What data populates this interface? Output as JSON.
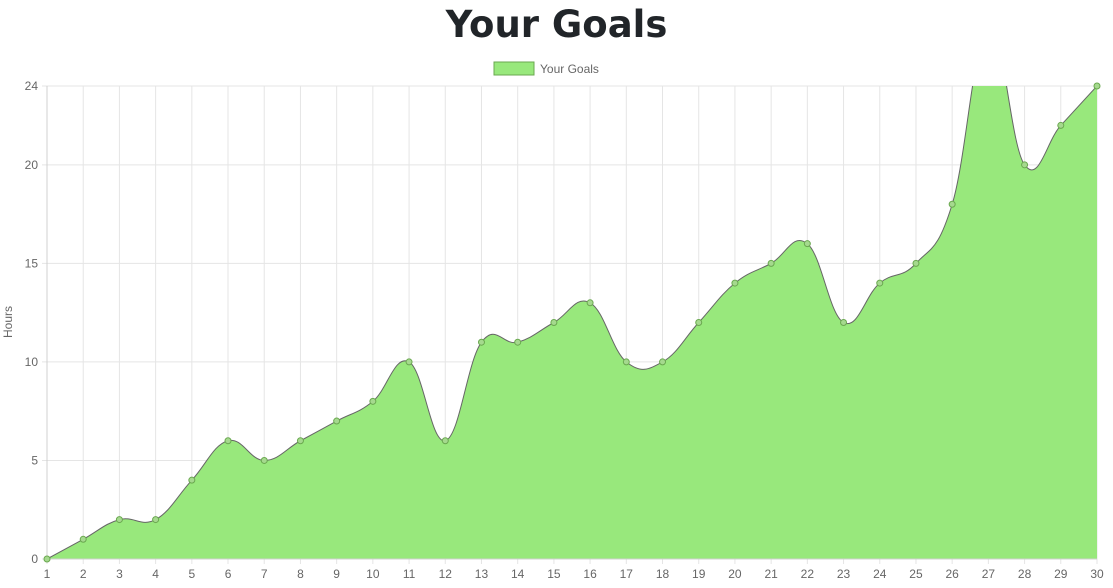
{
  "page": {
    "title": "Your Goals"
  },
  "chart_data": {
    "type": "area",
    "title": "",
    "xlabel": "",
    "ylabel": "Hours",
    "categories": [
      "1",
      "2",
      "3",
      "4",
      "5",
      "6",
      "7",
      "8",
      "9",
      "10",
      "11",
      "12",
      "13",
      "14",
      "15",
      "16",
      "17",
      "18",
      "19",
      "20",
      "21",
      "22",
      "23",
      "24",
      "25",
      "26",
      "27",
      "28",
      "29",
      "30"
    ],
    "series": [
      {
        "name": "Your Goals",
        "values": [
          0,
          1,
          2,
          2,
          4,
          6,
          5,
          6,
          7,
          8,
          10,
          6,
          11,
          11,
          12,
          13,
          10,
          10,
          12,
          14,
          15,
          16,
          12,
          14,
          15,
          18,
          27,
          20,
          22,
          24
        ],
        "fill_color": "#98e87c",
        "line_color": "#666666",
        "point_fill": "#a5d98e",
        "point_stroke": "#6aa84f"
      }
    ],
    "ylim": [
      0,
      24
    ],
    "yticks": [
      0,
      5,
      10,
      15,
      20,
      24
    ],
    "grid": true,
    "legend_position": "top-center",
    "line_smoothing": "cubic"
  }
}
